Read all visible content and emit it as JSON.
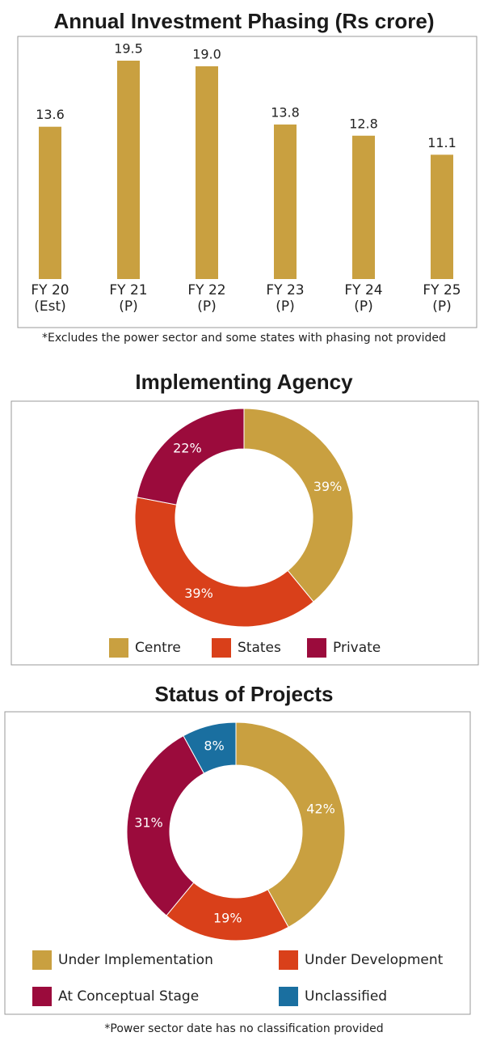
{
  "chart_data": [
    {
      "type": "bar",
      "title": "Annual Investment Phasing (Rs crore)",
      "categories": [
        [
          "FY 20",
          "(Est)"
        ],
        [
          "FY 21",
          "(P)"
        ],
        [
          "FY 22",
          "(P)"
        ],
        [
          "FY 23",
          "(P)"
        ],
        [
          "FY 24",
          "(P)"
        ],
        [
          "FY 25",
          "(P)"
        ]
      ],
      "values": [
        13.6,
        19.5,
        19,
        13.8,
        12.8,
        11.1
      ],
      "value_labels": [
        "13.6",
        "19.5",
        "19.0",
        "13.8",
        "12.8",
        "11.1"
      ],
      "color": "#c9a040",
      "note": "*Excludes the power sector and some states with phasing not provided"
    },
    {
      "type": "donut",
      "title": "Implementing Agency",
      "categories": [
        "Centre",
        "States",
        "Private"
      ],
      "values": [
        39,
        39,
        22
      ],
      "value_labels": [
        "39%",
        "39%",
        "22%"
      ],
      "colors": [
        "#c9a040",
        "#d9401a",
        "#9b0b3c"
      ]
    },
    {
      "type": "donut",
      "title": "Status of Projects",
      "categories": [
        "Under Implementation",
        "Under Development",
        "At Conceptual Stage",
        "Unclassified"
      ],
      "values": [
        42,
        19,
        31,
        8
      ],
      "value_labels": [
        "42%",
        "19%",
        "31%",
        "8%"
      ],
      "colors": [
        "#c9a040",
        "#d9401a",
        "#9b0b3c",
        "#1a6fa0"
      ],
      "note": "*Power sector date has no classification provided"
    }
  ]
}
